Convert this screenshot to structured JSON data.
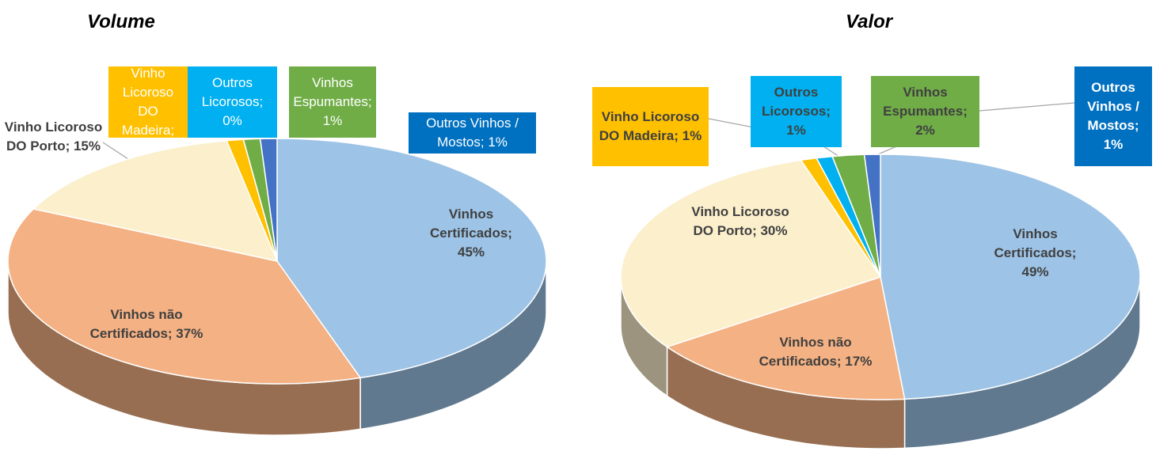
{
  "chart_data": [
    {
      "type": "pie",
      "title": "Volume",
      "values": [
        45,
        37,
        15,
        1,
        0,
        1,
        1
      ],
      "value_labels": [
        "Vinhos Certificados; 45%",
        "Vinhos não Certificados; 37%",
        "Vinho Licoroso DO Porto; 15%",
        "Vinho Licoroso DO Madeira;",
        "Outros Licorosos; 0%",
        "Vinhos Espumantes; 1%",
        "Outros Vinhos / Mostos; 1%"
      ],
      "colors": [
        "#9dc3e6",
        "#f4b183",
        "#fbefcc",
        "#ffc000",
        "#00b0f0",
        "#70ad47",
        "#4472c4"
      ]
    },
    {
      "type": "pie",
      "title": "Valor",
      "values": [
        49,
        17,
        30,
        1,
        1,
        2,
        1
      ],
      "value_labels": [
        "Vinhos Certificados; 49%",
        "Vinhos não Certificados; 17%",
        "Vinho Licoroso DO Porto; 30%",
        "Vinho Licoroso DO Madeira; 1%",
        "Outros Licorosos; 1%",
        "Vinhos Espumantes; 2%",
        "Outros Vinhos / Mostos; 1%"
      ],
      "colors": [
        "#9dc3e6",
        "#f4b183",
        "#fbefcc",
        "#ffc000",
        "#00b0f0",
        "#70ad47",
        "#4472c4"
      ]
    }
  ]
}
